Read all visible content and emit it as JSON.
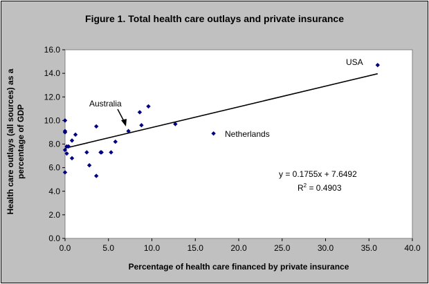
{
  "chart_data": {
    "type": "scatter",
    "title": "Figure 1.  Total health care outlays and private insurance",
    "xlabel": "Percentage of health care financed by private insurance",
    "ylabel": "Health care outlays (all sources) as a percentage of GDP",
    "xlim": [
      0,
      40
    ],
    "ylim": [
      0,
      16
    ],
    "xticks": [
      "0.0",
      "5.0",
      "10.0",
      "15.0",
      "20.0",
      "25.0",
      "30.0",
      "35.0",
      "40.0"
    ],
    "yticks": [
      "0.0",
      "2.0",
      "4.0",
      "6.0",
      "8.0",
      "10.0",
      "12.0",
      "14.0",
      "16.0"
    ],
    "grid": false,
    "marker_color": "#000080",
    "plot_background": "#ffffff",
    "frame_background": "#c0c0c0",
    "series": [
      {
        "x": [
          0.0,
          0.0,
          0.0,
          0.0,
          0.0,
          0.2,
          0.2,
          0.4,
          0.8,
          0.8,
          1.2,
          2.5,
          2.8,
          3.6,
          3.6,
          4.1,
          4.2,
          5.3,
          5.8,
          7.3,
          8.6,
          8.8,
          9.6,
          12.7,
          17.1,
          36.0
        ],
        "y": [
          10.0,
          9.1,
          9.0,
          7.5,
          5.6,
          7.8,
          7.2,
          7.8,
          6.8,
          8.3,
          8.8,
          7.3,
          6.2,
          5.3,
          9.5,
          7.3,
          7.3,
          7.3,
          8.2,
          9.1,
          10.7,
          9.6,
          11.2,
          9.7,
          8.9,
          14.7
        ]
      }
    ],
    "trendline": {
      "slope": 0.1755,
      "intercept": 7.6492,
      "x_range": [
        0,
        36
      ]
    },
    "annotations": {
      "usa": "USA",
      "netherlands": "Netherlands",
      "australia": "Australia",
      "equation": "y = 0.1755x + 7.6492",
      "r2_prefix": "R",
      "r2_sup": "2",
      "r2_value": " = 0.4903"
    }
  }
}
